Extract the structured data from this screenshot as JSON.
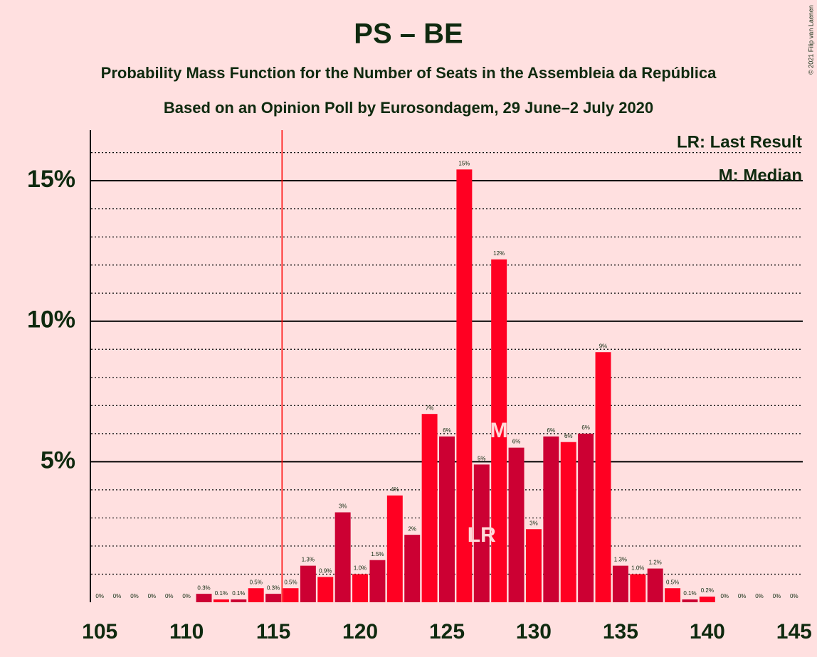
{
  "chart_data": {
    "type": "bar",
    "title": "PS – BE",
    "subtitle": "Probability Mass Function for the Number of Seats in the Assembleia da República",
    "subtitle2": "Based on an Opinion Poll by Eurosondagem, 29 June–2 July 2020",
    "copyright": "© 2021 Filip van Laenen",
    "legend": [
      "LR: Last Result",
      "M: Median"
    ],
    "x": [
      105,
      106,
      107,
      108,
      109,
      110,
      111,
      112,
      113,
      114,
      115,
      116,
      117,
      118,
      119,
      120,
      121,
      122,
      123,
      124,
      125,
      126,
      127,
      128,
      129,
      130,
      131,
      132,
      133,
      134,
      135,
      136,
      137,
      138,
      139,
      140,
      141,
      142,
      143,
      144,
      145
    ],
    "values": [
      0,
      0,
      0,
      0,
      0,
      0,
      0.3,
      0.1,
      0.1,
      0.5,
      0.3,
      0.5,
      1.3,
      0.9,
      3.2,
      1.0,
      1.5,
      3.8,
      2.4,
      6.7,
      5.9,
      15.4,
      4.9,
      12.2,
      5.5,
      2.6,
      5.9,
      5.7,
      6.0,
      8.9,
      1.3,
      1.0,
      1.2,
      0.5,
      0.1,
      0.2,
      0,
      0,
      0,
      0,
      0
    ],
    "value_labels": [
      "0%",
      "0%",
      "0%",
      "0%",
      "0%",
      "0%",
      "0.3%",
      "0.1%",
      "0.1%",
      "0.5%",
      "0.3%",
      "0.5%",
      "1.3%",
      "0.9%",
      "3%",
      "1.0%",
      "1.5%",
      "4%",
      "2%",
      "7%",
      "6%",
      "15%",
      "5%",
      "12%",
      "6%",
      "3%",
      "6%",
      "6%",
      "6%",
      "9%",
      "1.3%",
      "1.0%",
      "1.2%",
      "0.5%",
      "0.1%",
      "0.2%",
      "0%",
      "0%",
      "0%",
      "0%",
      "0%"
    ],
    "colors": {
      "even": "#ff0022",
      "odd": "#cc0033"
    },
    "xlim": [
      104.5,
      145.5
    ],
    "xticks": [
      105,
      110,
      115,
      120,
      125,
      130,
      135,
      140,
      145
    ],
    "ylim": [
      0,
      16.8
    ],
    "yticks": [
      {
        "value": 5,
        "label": "5%"
      },
      {
        "value": 10,
        "label": "10%"
      },
      {
        "value": 15,
        "label": "15%"
      }
    ],
    "minor_yticks": [
      1,
      2,
      3,
      4,
      6,
      7,
      8,
      9,
      11,
      12,
      13,
      14,
      16
    ],
    "majority_line": 115.5,
    "last_result": {
      "x": 127,
      "label": "LR"
    },
    "median": {
      "x": 128,
      "label": "M"
    }
  }
}
